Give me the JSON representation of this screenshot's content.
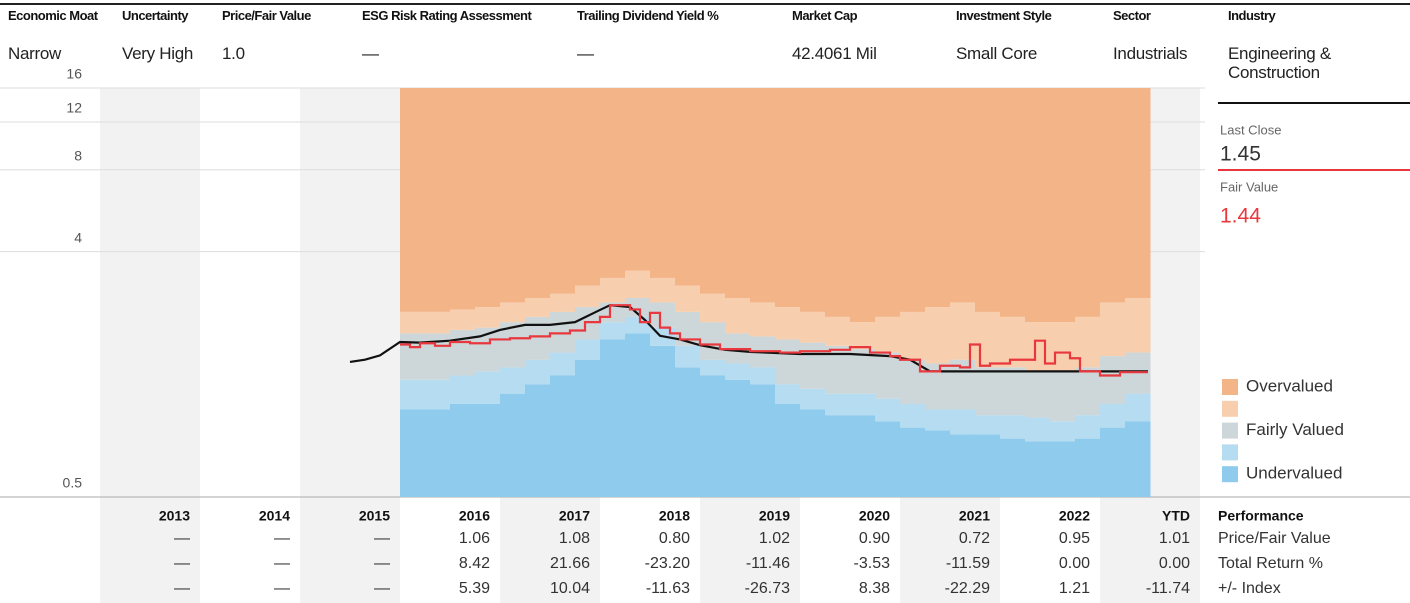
{
  "header": {
    "columns": [
      {
        "label": "Economic Moat",
        "value": "Narrow"
      },
      {
        "label": "Uncertainty",
        "value": "Very High"
      },
      {
        "label": "Price/Fair Value",
        "value": "1.0"
      },
      {
        "label": "ESG Risk Rating Assessment",
        "value": "—"
      },
      {
        "label": "Trailing Dividend Yield %",
        "value": "—"
      },
      {
        "label": "Market Cap",
        "value": "42.4061 Mil"
      },
      {
        "label": "Investment Style",
        "value": "Small Core"
      },
      {
        "label": "Sector",
        "value": "Industrials"
      },
      {
        "label": "Industry",
        "value": "Engineering & Construction"
      }
    ]
  },
  "chart_data": {
    "type": "line",
    "log": true,
    "grid": true,
    "xlim": [
      2012,
      2024.05
    ],
    "ylim": [
      0.5,
      16
    ],
    "yticks": [
      0.5,
      4,
      8,
      12,
      16
    ],
    "band_x": [
      2016,
      2016.25,
      2016.5,
      2016.75,
      2017,
      2017.25,
      2017.5,
      2017.75,
      2018,
      2018.25,
      2018.5,
      2018.75,
      2019,
      2019.25,
      2019.5,
      2019.75,
      2020,
      2020.25,
      2020.5,
      2020.75,
      2021,
      2021.25,
      2021.5,
      2021.75,
      2022,
      2022.25,
      2022.5,
      2022.75,
      2023,
      2023.25
    ],
    "bands": [
      {
        "name": "Undervalued",
        "color": "#8ecbec",
        "values": [
          1.05,
          1.05,
          1.1,
          1.1,
          1.2,
          1.3,
          1.4,
          1.6,
          1.9,
          2.0,
          1.8,
          1.5,
          1.4,
          1.35,
          1.3,
          1.1,
          1.05,
          1.0,
          1.0,
          0.95,
          0.9,
          0.88,
          0.85,
          0.85,
          0.82,
          0.8,
          0.8,
          0.82,
          0.9,
          0.95
        ]
      },
      {
        "name": null,
        "color": "#b6dcf1",
        "values": [
          1.35,
          1.35,
          1.4,
          1.45,
          1.5,
          1.6,
          1.7,
          1.9,
          2.2,
          2.3,
          2.1,
          1.8,
          1.6,
          1.55,
          1.5,
          1.3,
          1.25,
          1.2,
          1.2,
          1.15,
          1.1,
          1.05,
          1.05,
          1.0,
          1.0,
          0.98,
          0.95,
          1.0,
          1.1,
          1.2
        ]
      },
      {
        "name": "Fairly Valued",
        "color": "#cdd6d9",
        "values": [
          2.0,
          2.0,
          2.06,
          2.1,
          2.2,
          2.3,
          2.4,
          2.5,
          2.6,
          2.7,
          2.6,
          2.4,
          2.2,
          2.0,
          1.95,
          1.9,
          1.85,
          1.8,
          1.75,
          1.7,
          1.6,
          1.55,
          1.6,
          1.5,
          1.5,
          1.45,
          1.45,
          1.5,
          1.65,
          1.7
        ]
      },
      {
        "name": null,
        "color": "#f8cfae",
        "values": [
          2.4,
          2.4,
          2.45,
          2.5,
          2.6,
          2.7,
          2.8,
          3.0,
          3.2,
          3.4,
          3.2,
          3.0,
          2.8,
          2.7,
          2.6,
          2.5,
          2.4,
          2.3,
          2.2,
          2.3,
          2.4,
          2.5,
          2.6,
          2.4,
          2.3,
          2.2,
          2.2,
          2.3,
          2.6,
          2.7
        ]
      },
      {
        "name": "Overvalued",
        "color": "#f3b488"
      }
    ],
    "series": [
      {
        "name": "Last Close",
        "color": "#111111",
        "step": false,
        "x": [
          2015.5,
          2015.65,
          2015.8,
          2016.0,
          2016.2,
          2016.5,
          2016.8,
          2017.0,
          2017.25,
          2017.5,
          2017.75,
          2018.0,
          2018.1,
          2018.3,
          2018.45,
          2018.6,
          2018.8,
          2019.0,
          2019.25,
          2019.5,
          2020.0,
          2020.5,
          2020.9,
          2021.1,
          2021.3,
          2022.0,
          2023.0,
          2023.48
        ],
        "values": [
          1.57,
          1.6,
          1.66,
          1.86,
          1.85,
          1.88,
          1.95,
          2.06,
          2.15,
          2.15,
          2.2,
          2.44,
          2.54,
          2.5,
          2.24,
          1.96,
          1.9,
          1.81,
          1.74,
          1.71,
          1.68,
          1.68,
          1.65,
          1.6,
          1.45,
          1.45,
          1.45,
          1.45
        ]
      },
      {
        "name": "Fair Value",
        "color": "#e8383d",
        "step": true,
        "x": [
          2016.0,
          2016.1,
          2016.2,
          2016.35,
          2016.5,
          2016.7,
          2016.9,
          2017.1,
          2017.3,
          2017.5,
          2017.7,
          2017.85,
          2018.0,
          2018.1,
          2018.3,
          2018.4,
          2018.5,
          2018.6,
          2018.7,
          2018.8,
          2019.0,
          2019.2,
          2019.5,
          2019.8,
          2020.0,
          2020.3,
          2020.5,
          2020.7,
          2020.9,
          2021.0,
          2021.2,
          2021.4,
          2021.6,
          2021.7,
          2021.8,
          2021.9,
          2022.1,
          2022.35,
          2022.45,
          2022.55,
          2022.7,
          2022.8,
          2023.0,
          2023.2,
          2023.48
        ],
        "values": [
          1.82,
          1.78,
          1.84,
          1.8,
          1.86,
          1.84,
          1.9,
          1.92,
          1.95,
          2.0,
          2.05,
          2.2,
          2.3,
          2.54,
          2.45,
          2.2,
          2.38,
          2.1,
          2.0,
          1.9,
          1.82,
          1.75,
          1.72,
          1.7,
          1.72,
          1.74,
          1.78,
          1.7,
          1.65,
          1.6,
          1.45,
          1.52,
          1.5,
          1.82,
          1.52,
          1.55,
          1.6,
          1.88,
          1.55,
          1.7,
          1.62,
          1.45,
          1.4,
          1.44,
          1.44
        ]
      }
    ]
  },
  "sidebar": {
    "last_close": "1.45",
    "fair_value": "1.44"
  },
  "table": {
    "columns": [
      "2013",
      "2014",
      "2015",
      "2016",
      "2017",
      "2018",
      "2019",
      "2020",
      "2021",
      "2022",
      "YTD"
    ],
    "title": "Performance",
    "rows": [
      {
        "label": "Price/Fair Value",
        "values": [
          "—",
          "—",
          "—",
          "1.06",
          "1.08",
          "0.80",
          "1.02",
          "0.90",
          "0.72",
          "0.95",
          "1.01"
        ]
      },
      {
        "label": "Total Return %",
        "values": [
          "—",
          "—",
          "—",
          "8.42",
          "21.66",
          "-23.20",
          "-11.46",
          "-3.53",
          "-11.59",
          "0.00",
          "0.00"
        ]
      },
      {
        "label": "+/- Index",
        "values": [
          "—",
          "—",
          "—",
          "5.39",
          "10.04",
          "-11.63",
          "-26.73",
          "8.38",
          "-22.29",
          "1.21",
          "-11.74"
        ]
      }
    ]
  }
}
